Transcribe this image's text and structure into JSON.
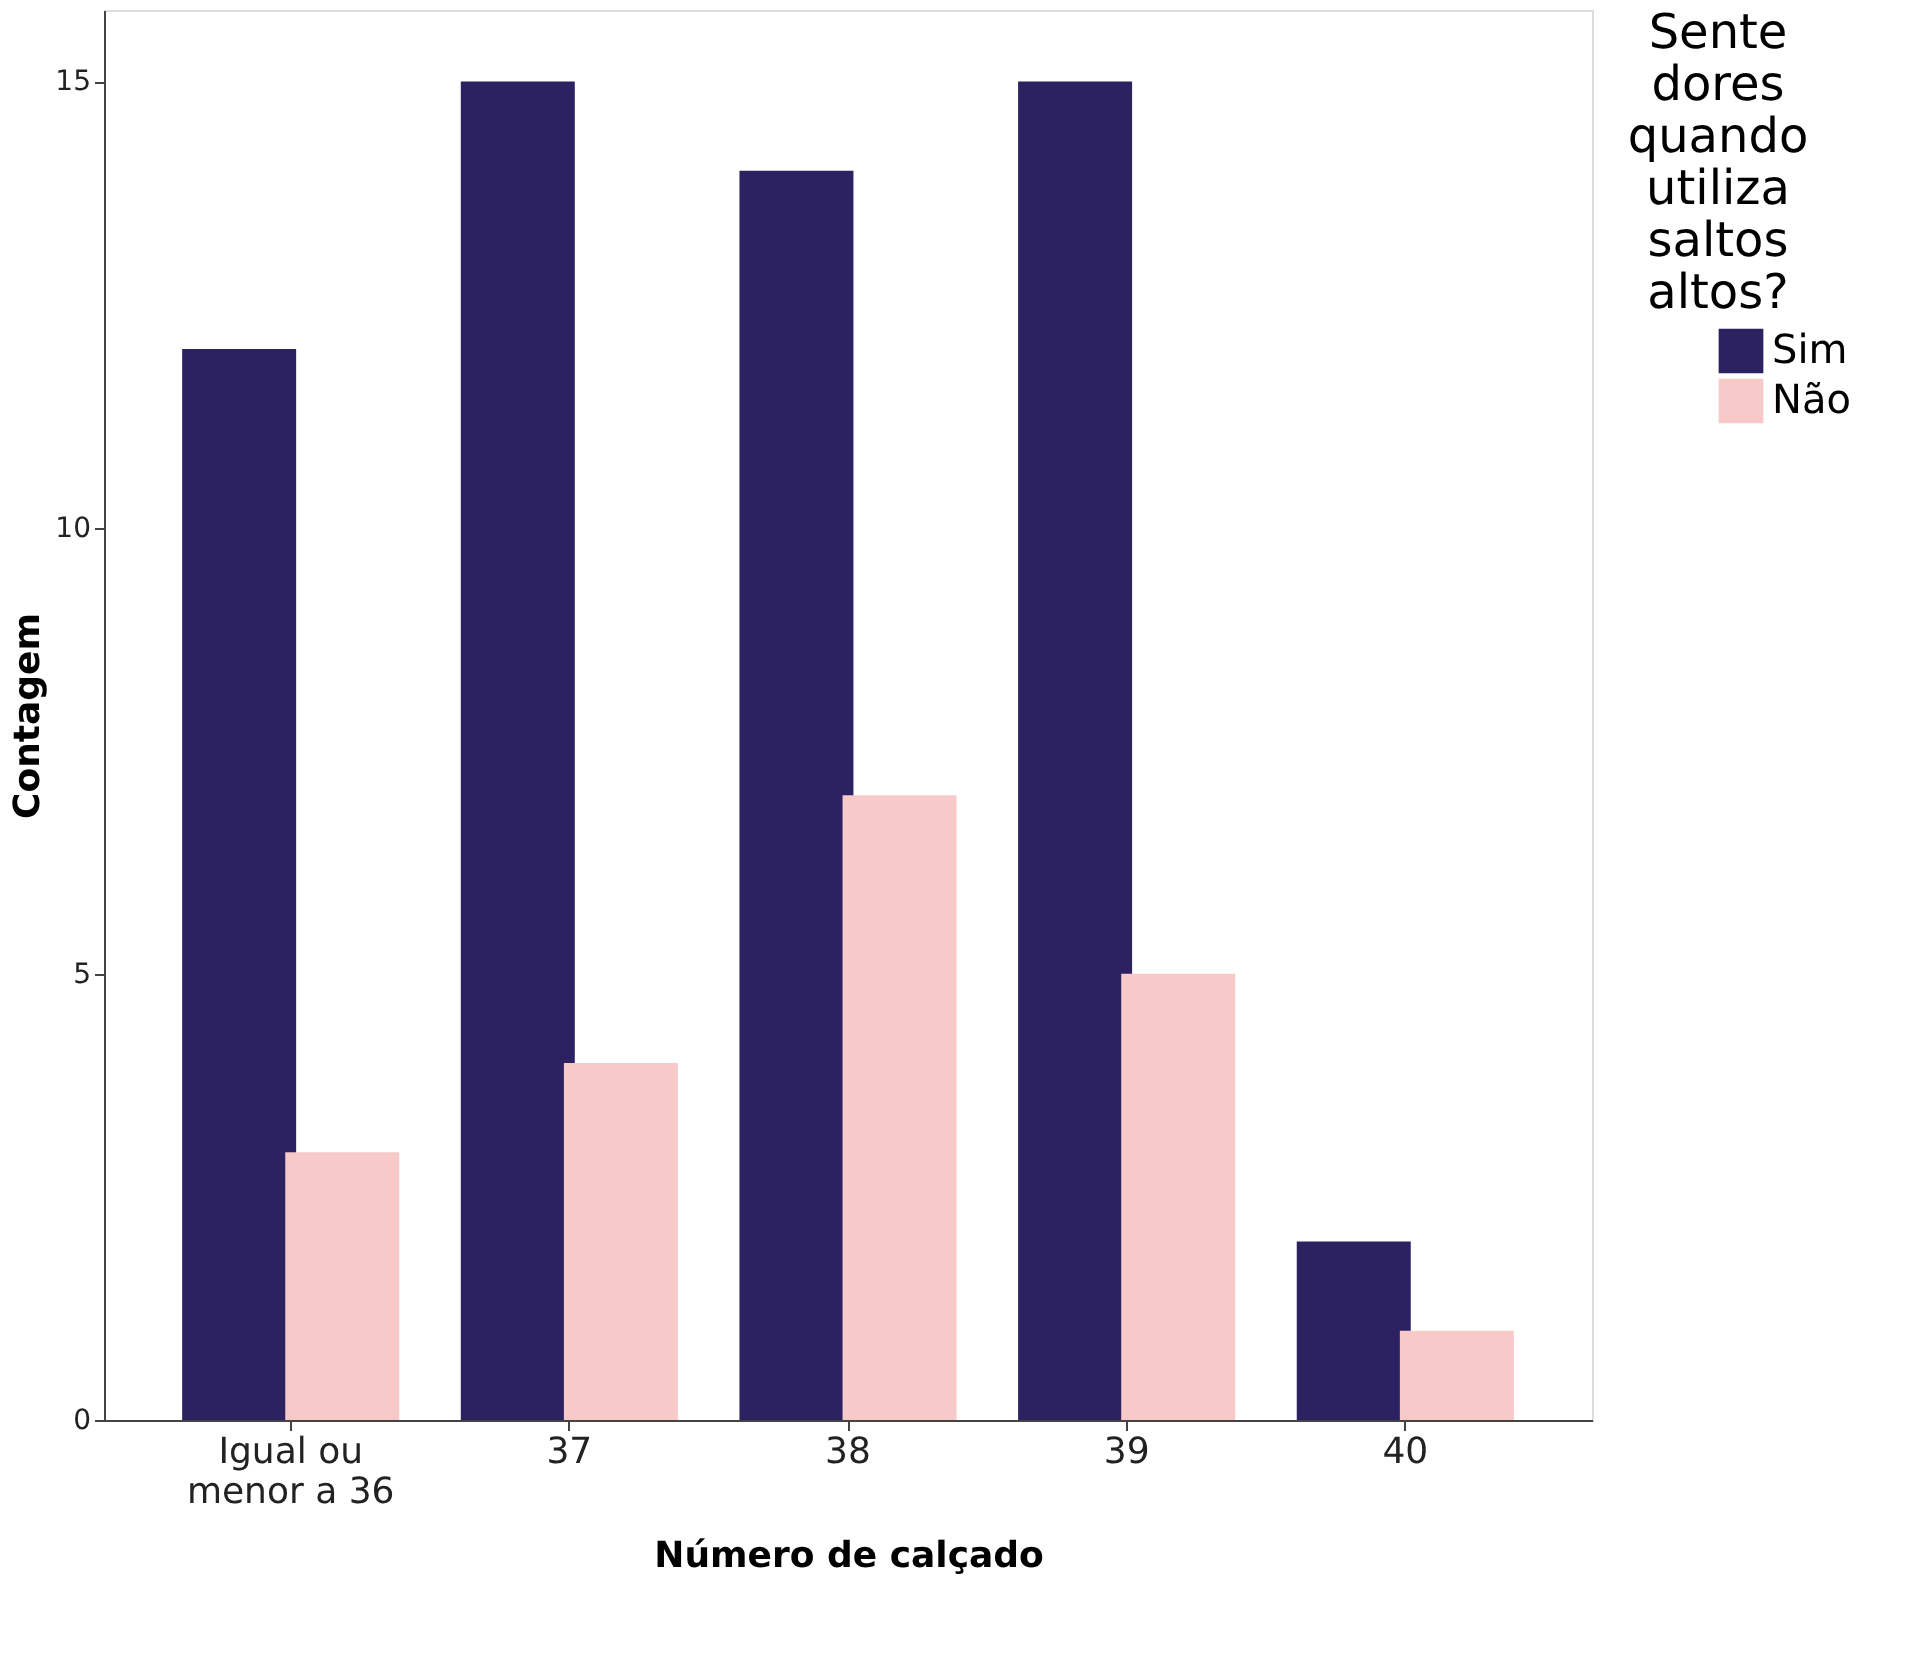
{
  "chart_data": {
    "type": "bar",
    "xlabel": "Número de calçado",
    "ylabel": "Contagem",
    "legend_title": "Sente dores quando utiliza saltos altos?",
    "categories": [
      "Igual ou menor a 36",
      "37",
      "38",
      "39",
      "40"
    ],
    "series": [
      {
        "name": "Sim",
        "color": "#2c2262",
        "values": [
          12,
          15,
          14,
          15,
          2
        ]
      },
      {
        "name": "Não",
        "color": "#f7c9c9",
        "values": [
          3,
          4,
          7,
          5,
          1
        ]
      }
    ],
    "ylim": [
      0,
      15.8
    ],
    "yticks": [
      0,
      5,
      10,
      15
    ],
    "grid": false,
    "legend": "top right"
  }
}
